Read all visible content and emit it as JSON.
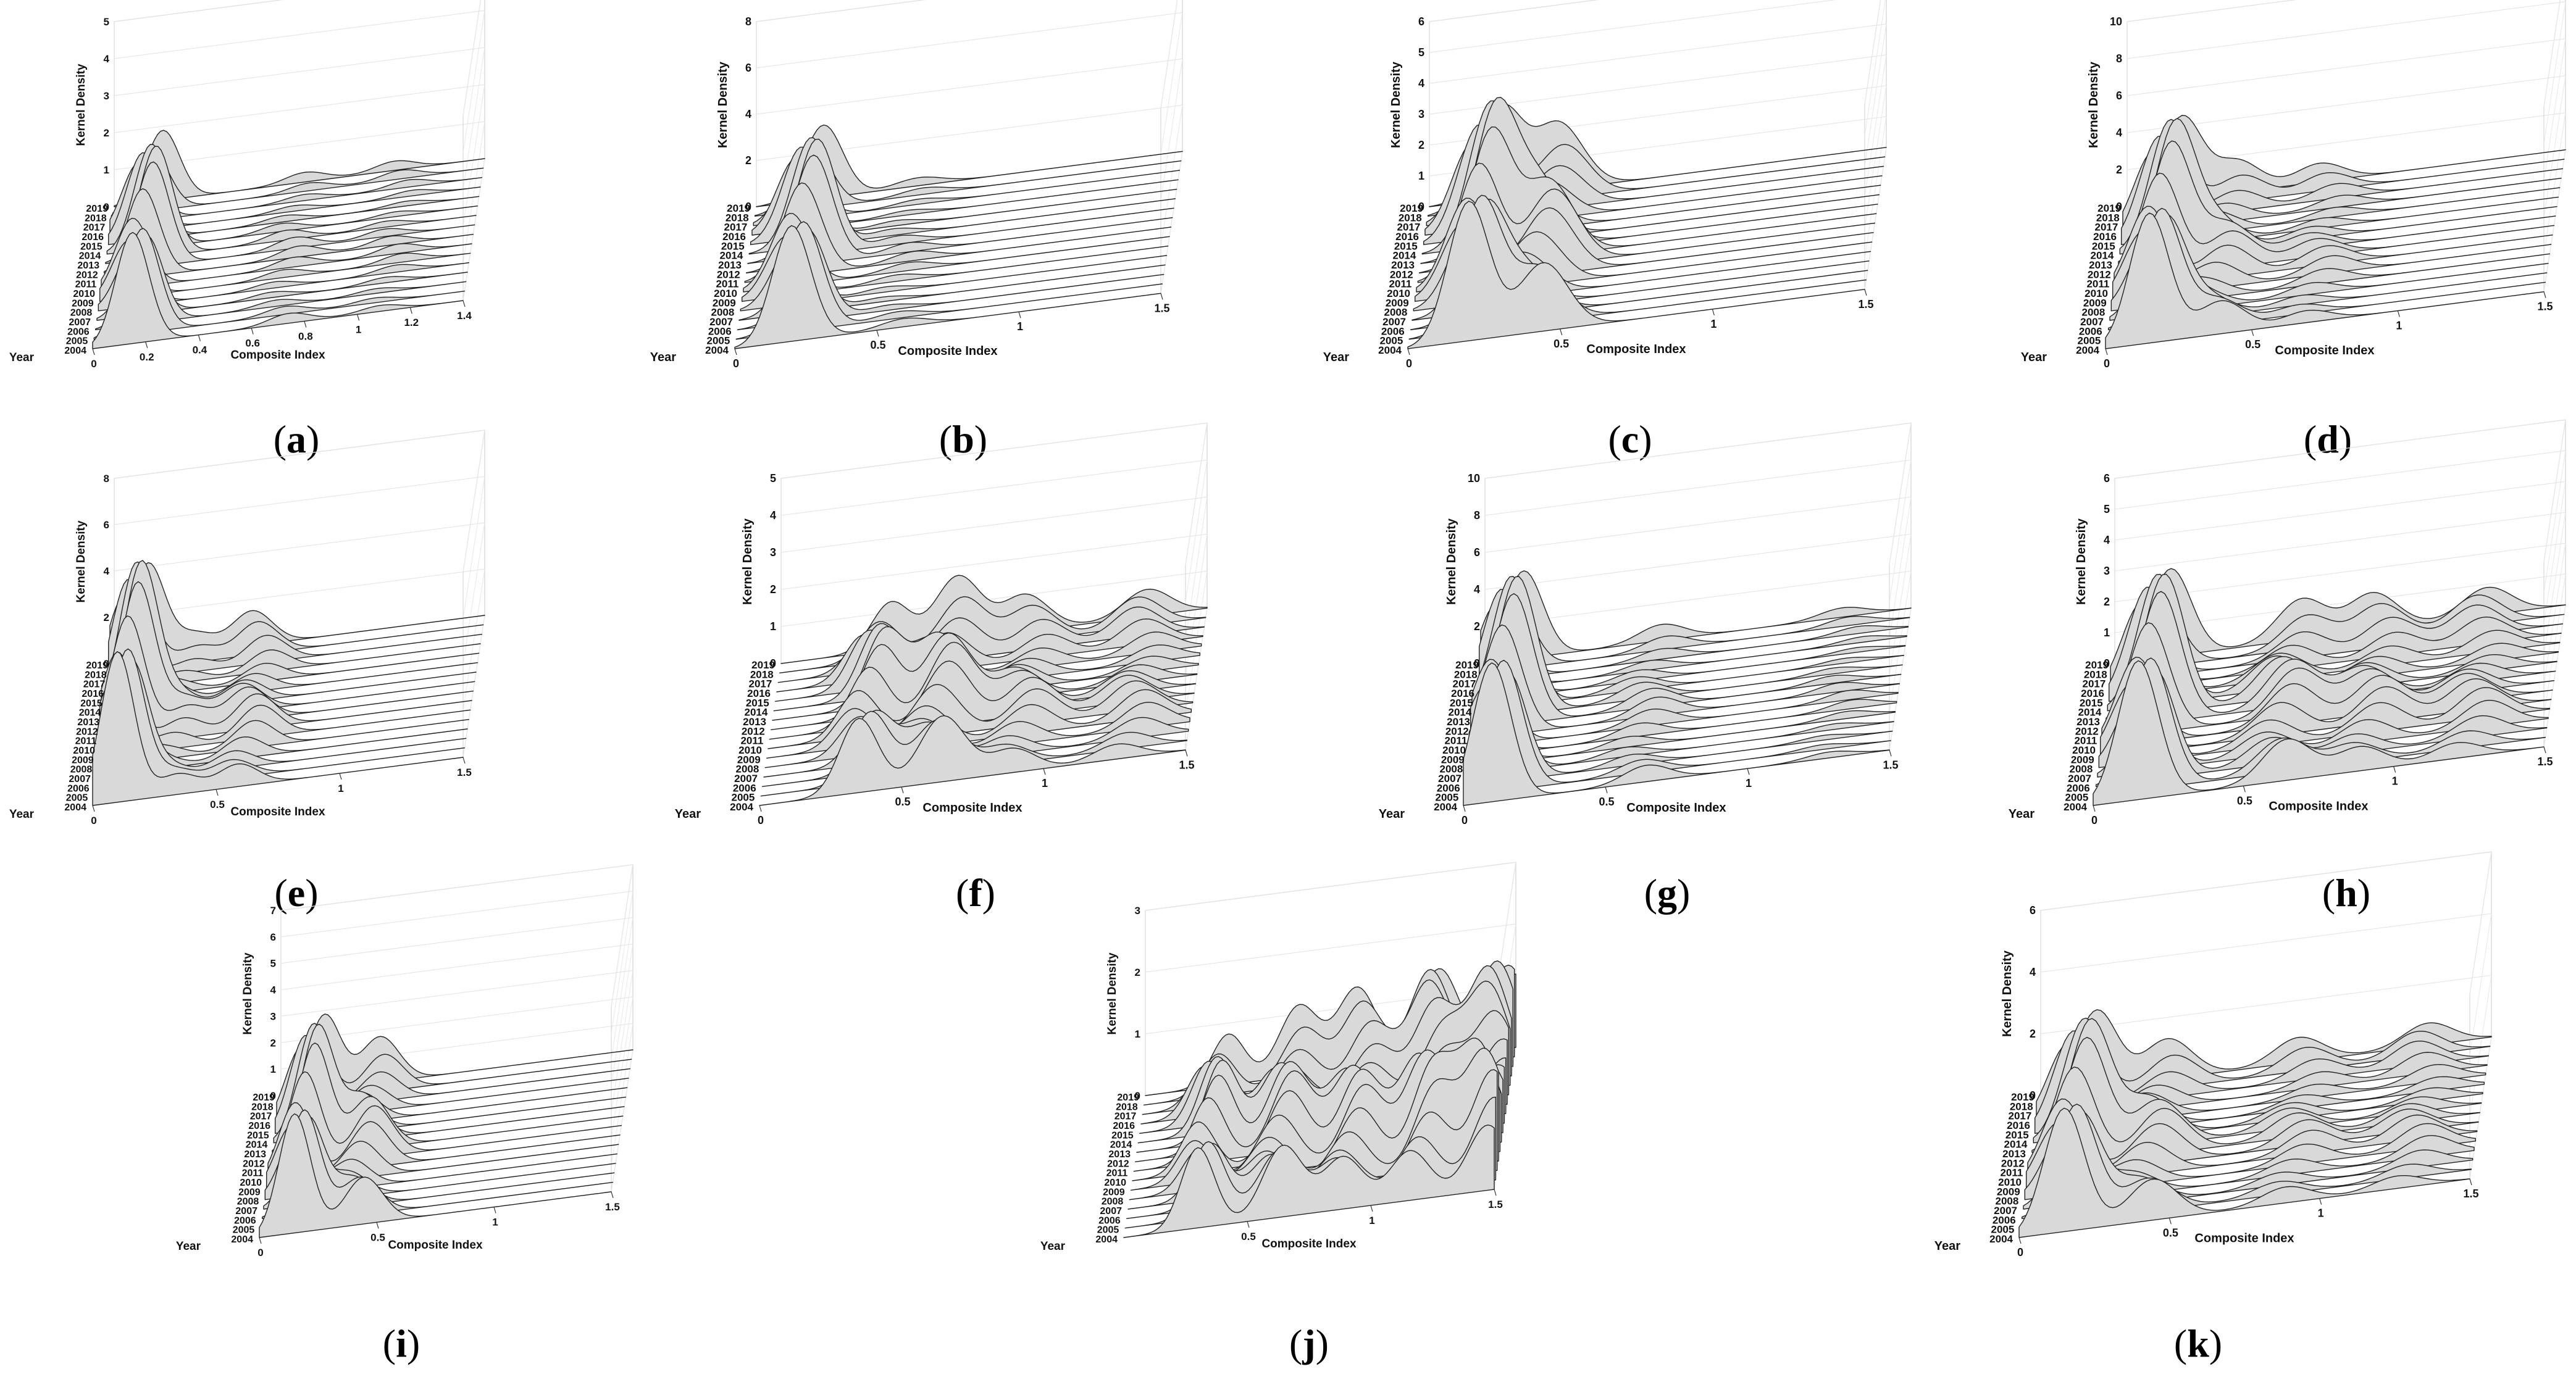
{
  "common": {
    "xlabel": "Composite Index",
    "ylabel": "Kernel Density",
    "year_label": "Year",
    "years": [
      "2004",
      "2005",
      "2006",
      "2007",
      "2008",
      "2009",
      "2010",
      "2011",
      "2012",
      "2013",
      "2014",
      "2015",
      "2016",
      "2017",
      "2018",
      "2019"
    ]
  },
  "chart_data": [
    {
      "id": "a",
      "caption_letter": "a",
      "type": "area",
      "title": "",
      "xlabel": "Composite Index",
      "ylabel": "Kernel Density",
      "zlabel": "Year",
      "xlim": [
        0,
        1.4
      ],
      "x_ticks": [
        "0",
        "0.2",
        "0.4",
        "0.6",
        "0.8",
        "1",
        "1.2",
        "1.4"
      ],
      "zlim": [
        0,
        5
      ],
      "z_ticks": [
        "0",
        "1",
        "2",
        "3",
        "4",
        "5"
      ],
      "years": [
        "2004",
        "2005",
        "2006",
        "2007",
        "2008",
        "2009",
        "2010",
        "2011",
        "2012",
        "2013",
        "2014",
        "2015",
        "2016",
        "2017",
        "2018",
        "2019"
      ],
      "peaks": [
        {
          "x": 0.15,
          "height": 3.0
        },
        {
          "x": 0.7,
          "height": 0.3
        },
        {
          "x": 1.1,
          "height": 0.25
        }
      ]
    },
    {
      "id": "b",
      "caption_letter": "b",
      "type": "area",
      "title": "",
      "xlabel": "Composite Index",
      "ylabel": "Kernel Density",
      "zlabel": "Year",
      "xlim": [
        0,
        1.5
      ],
      "x_ticks": [
        "0",
        "0.5",
        "1",
        "1.5"
      ],
      "zlim": [
        0,
        8
      ],
      "z_ticks": [
        "0",
        "2",
        "4",
        "6",
        "8"
      ],
      "years": [
        "2004",
        "2005",
        "2006",
        "2007",
        "2008",
        "2009",
        "2010",
        "2011",
        "2012",
        "2013",
        "2014",
        "2015",
        "2016",
        "2017",
        "2018",
        "2019"
      ],
      "peaks": [
        {
          "x": 0.2,
          "height": 5.0
        },
        {
          "x": 0.55,
          "height": 0.4
        }
      ]
    },
    {
      "id": "c",
      "caption_letter": "c",
      "type": "area",
      "title": "",
      "xlabel": "Composite Index",
      "ylabel": "Kernel Density",
      "zlabel": "Year",
      "xlim": [
        0,
        1.5
      ],
      "x_ticks": [
        "0",
        "0.5",
        "1",
        "1.5"
      ],
      "zlim": [
        0,
        6
      ],
      "z_ticks": [
        "0",
        "1",
        "2",
        "3",
        "4",
        "5",
        "6"
      ],
      "years": [
        "2004",
        "2005",
        "2006",
        "2007",
        "2008",
        "2009",
        "2010",
        "2011",
        "2012",
        "2013",
        "2014",
        "2015",
        "2016",
        "2017",
        "2018",
        "2019"
      ],
      "peaks": [
        {
          "x": 0.2,
          "height": 4.5
        },
        {
          "x": 0.4,
          "height": 2.5
        }
      ]
    },
    {
      "id": "d",
      "caption_letter": "d",
      "type": "area",
      "title": "",
      "xlabel": "Composite Index",
      "ylabel": "Kernel Density",
      "zlabel": "Year",
      "xlim": [
        0,
        1.5
      ],
      "x_ticks": [
        "0",
        "0.5",
        "1",
        "1.5"
      ],
      "zlim": [
        0,
        10
      ],
      "z_ticks": [
        "0",
        "2",
        "4",
        "6",
        "8",
        "10"
      ],
      "years": [
        "2004",
        "2005",
        "2006",
        "2007",
        "2008",
        "2009",
        "2010",
        "2011",
        "2012",
        "2013",
        "2014",
        "2015",
        "2016",
        "2017",
        "2018",
        "2019"
      ],
      "peaks": [
        {
          "x": 0.15,
          "height": 7.0
        },
        {
          "x": 0.35,
          "height": 2.0
        },
        {
          "x": 0.7,
          "height": 1.0
        }
      ]
    },
    {
      "id": "e",
      "caption_letter": "e",
      "type": "area",
      "title": "",
      "xlabel": "Composite Index",
      "ylabel": "Kernel Density",
      "zlabel": "Year",
      "xlim": [
        0,
        1.5
      ],
      "x_ticks": [
        "0",
        "0.5",
        "1",
        "1.5"
      ],
      "zlim": [
        0,
        8
      ],
      "z_ticks": [
        "0",
        "2",
        "4",
        "6",
        "8"
      ],
      "years": [
        "2004",
        "2005",
        "2006",
        "2007",
        "2008",
        "2009",
        "2010",
        "2011",
        "2012",
        "2013",
        "2014",
        "2015",
        "2016",
        "2017",
        "2018",
        "2019"
      ],
      "peaks": [
        {
          "x": 0.1,
          "height": 6.5
        },
        {
          "x": 0.3,
          "height": 1.0
        },
        {
          "x": 0.6,
          "height": 1.5
        }
      ]
    },
    {
      "id": "f",
      "caption_letter": "f",
      "type": "area",
      "title": "",
      "xlabel": "Composite Index",
      "ylabel": "Kernel Density",
      "zlabel": "Year",
      "xlim": [
        0,
        1.5
      ],
      "x_ticks": [
        "0",
        "0.5",
        "1",
        "1.5"
      ],
      "zlim": [
        0,
        5
      ],
      "z_ticks": [
        "0",
        "1",
        "2",
        "3",
        "4",
        "5"
      ],
      "years": [
        "2004",
        "2005",
        "2006",
        "2007",
        "2008",
        "2009",
        "2010",
        "2011",
        "2012",
        "2013",
        "2014",
        "2015",
        "2016",
        "2017",
        "2018",
        "2019"
      ],
      "peaks": [
        {
          "x": 0.35,
          "height": 2.0
        },
        {
          "x": 0.6,
          "height": 2.0
        },
        {
          "x": 0.9,
          "height": 1.0
        },
        {
          "x": 1.3,
          "height": 0.8
        }
      ]
    },
    {
      "id": "g",
      "caption_letter": "g",
      "type": "area",
      "title": "",
      "xlabel": "Composite Index",
      "ylabel": "Kernel Density",
      "zlabel": "Year",
      "xlim": [
        0,
        1.5
      ],
      "x_ticks": [
        "0",
        "0.5",
        "1",
        "1.5"
      ],
      "zlim": [
        0,
        10
      ],
      "z_ticks": [
        "0",
        "2",
        "4",
        "6",
        "8",
        "10"
      ],
      "years": [
        "2004",
        "2005",
        "2006",
        "2007",
        "2008",
        "2009",
        "2010",
        "2011",
        "2012",
        "2013",
        "2014",
        "2015",
        "2016",
        "2017",
        "2018",
        "2019"
      ],
      "peaks": [
        {
          "x": 0.1,
          "height": 7.5
        },
        {
          "x": 0.6,
          "height": 1.0
        },
        {
          "x": 1.3,
          "height": 0.5
        }
      ]
    },
    {
      "id": "h",
      "caption_letter": "h",
      "type": "area",
      "title": "",
      "xlabel": "Composite Index",
      "ylabel": "Kernel Density",
      "zlabel": "Year",
      "xlim": [
        0,
        1.5
      ],
      "x_ticks": [
        "0",
        "0.5",
        "1",
        "1.5"
      ],
      "zlim": [
        0,
        6
      ],
      "z_ticks": [
        "0",
        "1",
        "2",
        "3",
        "4",
        "5",
        "6"
      ],
      "years": [
        "2004",
        "2005",
        "2006",
        "2007",
        "2008",
        "2009",
        "2010",
        "2011",
        "2012",
        "2013",
        "2014",
        "2015",
        "2016",
        "2017",
        "2018",
        "2019"
      ],
      "peaks": [
        {
          "x": 0.15,
          "height": 4.5
        },
        {
          "x": 0.6,
          "height": 1.5
        },
        {
          "x": 0.9,
          "height": 1.2
        },
        {
          "x": 1.25,
          "height": 1.0
        }
      ]
    },
    {
      "id": "i",
      "caption_letter": "i",
      "type": "area",
      "title": "",
      "xlabel": "Composite Index",
      "ylabel": "Kernel Density",
      "zlabel": "Year",
      "xlim": [
        0,
        1.5
      ],
      "x_ticks": [
        "0",
        "0.5",
        "1",
        "1.5"
      ],
      "zlim": [
        0,
        7
      ],
      "z_ticks": [
        "0",
        "1",
        "2",
        "3",
        "4",
        "5",
        "6",
        "7"
      ],
      "years": [
        "2004",
        "2005",
        "2006",
        "2007",
        "2008",
        "2009",
        "2010",
        "2011",
        "2012",
        "2013",
        "2014",
        "2015",
        "2016",
        "2017",
        "2018",
        "2019"
      ],
      "peaks": [
        {
          "x": 0.15,
          "height": 4.5
        },
        {
          "x": 0.4,
          "height": 2.0
        }
      ]
    },
    {
      "id": "j",
      "caption_letter": "j",
      "type": "area",
      "title": "",
      "xlabel": "Composite Index",
      "ylabel": "Kernel Density",
      "zlabel": "Year",
      "xlim": [
        0,
        1.5
      ],
      "x_ticks": [
        "0.5",
        "1",
        "1.5"
      ],
      "zlim": [
        0,
        3
      ],
      "z_ticks": [
        "0",
        "1",
        "2",
        "3"
      ],
      "years": [
        "2004",
        "2005",
        "2006",
        "2007",
        "2008",
        "2009",
        "2010",
        "2011",
        "2012",
        "2013",
        "2014",
        "2015",
        "2016",
        "2017",
        "2018",
        "2019"
      ],
      "peaks": [
        {
          "x": 0.3,
          "height": 1.3
        },
        {
          "x": 0.6,
          "height": 1.3
        },
        {
          "x": 0.9,
          "height": 1.3
        },
        {
          "x": 1.2,
          "height": 1.6
        },
        {
          "x": 1.45,
          "height": 1.8
        }
      ]
    },
    {
      "id": "k",
      "caption_letter": "k",
      "type": "area",
      "title": "",
      "xlabel": "Composite Index",
      "ylabel": "Kernel Density",
      "zlabel": "Year",
      "xlim": [
        0,
        1.5
      ],
      "x_ticks": [
        "0",
        "0.5",
        "1",
        "1.5"
      ],
      "zlim": [
        0,
        6
      ],
      "z_ticks": [
        "0",
        "2",
        "4",
        "6"
      ],
      "years": [
        "2004",
        "2005",
        "2006",
        "2007",
        "2008",
        "2009",
        "2010",
        "2011",
        "2012",
        "2013",
        "2014",
        "2015",
        "2016",
        "2017",
        "2018",
        "2019"
      ],
      "peaks": [
        {
          "x": 0.15,
          "height": 4.0
        },
        {
          "x": 0.4,
          "height": 1.5
        },
        {
          "x": 0.9,
          "height": 0.8
        },
        {
          "x": 1.3,
          "height": 0.8
        }
      ]
    }
  ]
}
